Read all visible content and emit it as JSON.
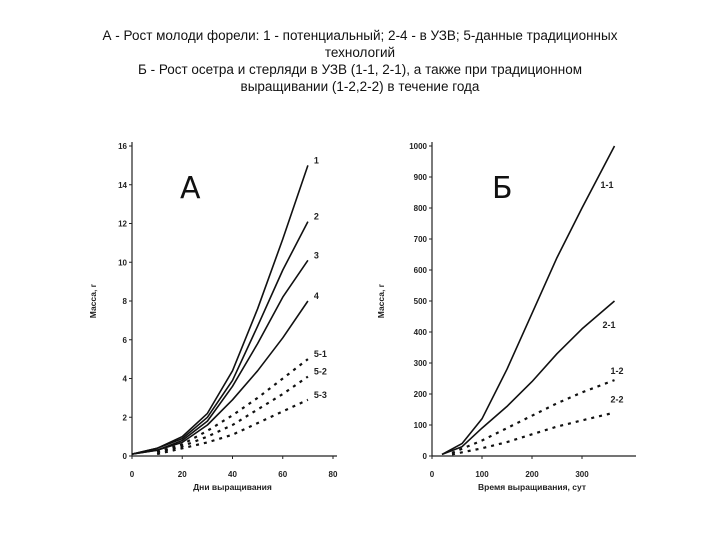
{
  "caption": {
    "line1": "А - Рост молоди форели: 1 - потенциальный; 2-4 - в УЗВ; 5-данные традиционных",
    "line2": "технологий",
    "line3": "Б - Рост осетра и стерляди в УЗВ (1-1, 2-1), а также при традиционном",
    "line4": "выращивании (1-2,2-2) в течение года"
  },
  "chart_data": [
    {
      "type": "line",
      "panel_label": "А",
      "xlabel": "Дни выращивания",
      "ylabel": "Масса, г",
      "xlim": [
        0,
        80
      ],
      "ylim": [
        0,
        16
      ],
      "xticks": [
        "0",
        "20",
        "40",
        "60",
        "80"
      ],
      "yticks": [
        "0",
        "2",
        "4",
        "6",
        "8",
        "10",
        "12",
        "14",
        "16"
      ],
      "grid": false,
      "series": [
        {
          "name": "1",
          "style": "solid",
          "x": [
            0,
            10,
            20,
            30,
            40,
            50,
            60,
            70
          ],
          "y": [
            0.1,
            0.4,
            1.0,
            2.2,
            4.4,
            7.6,
            11.2,
            15.0
          ]
        },
        {
          "name": "2",
          "style": "solid",
          "x": [
            0,
            10,
            20,
            30,
            40,
            50,
            60,
            70
          ],
          "y": [
            0.1,
            0.4,
            0.9,
            2.0,
            3.9,
            6.7,
            9.6,
            12.1
          ]
        },
        {
          "name": "3",
          "style": "solid",
          "x": [
            0,
            10,
            20,
            30,
            40,
            50,
            60,
            70
          ],
          "y": [
            0.1,
            0.3,
            0.8,
            1.8,
            3.6,
            5.8,
            8.2,
            10.1
          ]
        },
        {
          "name": "4",
          "style": "solid",
          "x": [
            0,
            10,
            20,
            30,
            40,
            50,
            60,
            70
          ],
          "y": [
            0.1,
            0.3,
            0.7,
            1.6,
            2.9,
            4.4,
            6.1,
            8.0
          ]
        },
        {
          "name": "5-1",
          "style": "dashed",
          "x": [
            10,
            20,
            30,
            40,
            50,
            60,
            70
          ],
          "y": [
            0.2,
            0.6,
            1.3,
            2.1,
            3.0,
            4.0,
            5.0
          ]
        },
        {
          "name": "5-2",
          "style": "dashed",
          "x": [
            10,
            20,
            30,
            40,
            50,
            60,
            70
          ],
          "y": [
            0.2,
            0.5,
            1.0,
            1.6,
            2.4,
            3.2,
            4.1
          ]
        },
        {
          "name": "5-3",
          "style": "dashed",
          "x": [
            10,
            20,
            30,
            40,
            50,
            60,
            70
          ],
          "y": [
            0.1,
            0.4,
            0.7,
            1.1,
            1.7,
            2.3,
            2.9
          ]
        }
      ]
    },
    {
      "type": "line",
      "panel_label": "Б",
      "xlabel": "Время выращивания, сут",
      "ylabel": "Масса, г",
      "xlim": [
        0,
        400
      ],
      "ylim": [
        0,
        1000
      ],
      "xticks": [
        "0",
        "100",
        "200",
        "300"
      ],
      "yticks": [
        "0",
        "100",
        "200",
        "300",
        "400",
        "500",
        "600",
        "700",
        "800",
        "900",
        "1000"
      ],
      "grid": false,
      "series": [
        {
          "name": "1-1",
          "style": "solid",
          "x": [
            20,
            60,
            100,
            150,
            200,
            250,
            300,
            365
          ],
          "y": [
            5,
            40,
            120,
            280,
            460,
            640,
            800,
            1000
          ]
        },
        {
          "name": "2-1",
          "style": "solid",
          "x": [
            20,
            60,
            100,
            150,
            200,
            250,
            300,
            365
          ],
          "y": [
            5,
            30,
            90,
            160,
            240,
            330,
            410,
            500
          ]
        },
        {
          "name": "1-2",
          "style": "dashed",
          "x": [
            40,
            100,
            150,
            200,
            250,
            300,
            365
          ],
          "y": [
            10,
            50,
            90,
            130,
            170,
            205,
            245
          ]
        },
        {
          "name": "2-2",
          "style": "dashed",
          "x": [
            40,
            100,
            150,
            200,
            250,
            300,
            365
          ],
          "y": [
            5,
            25,
            45,
            70,
            95,
            115,
            140
          ]
        }
      ]
    }
  ]
}
